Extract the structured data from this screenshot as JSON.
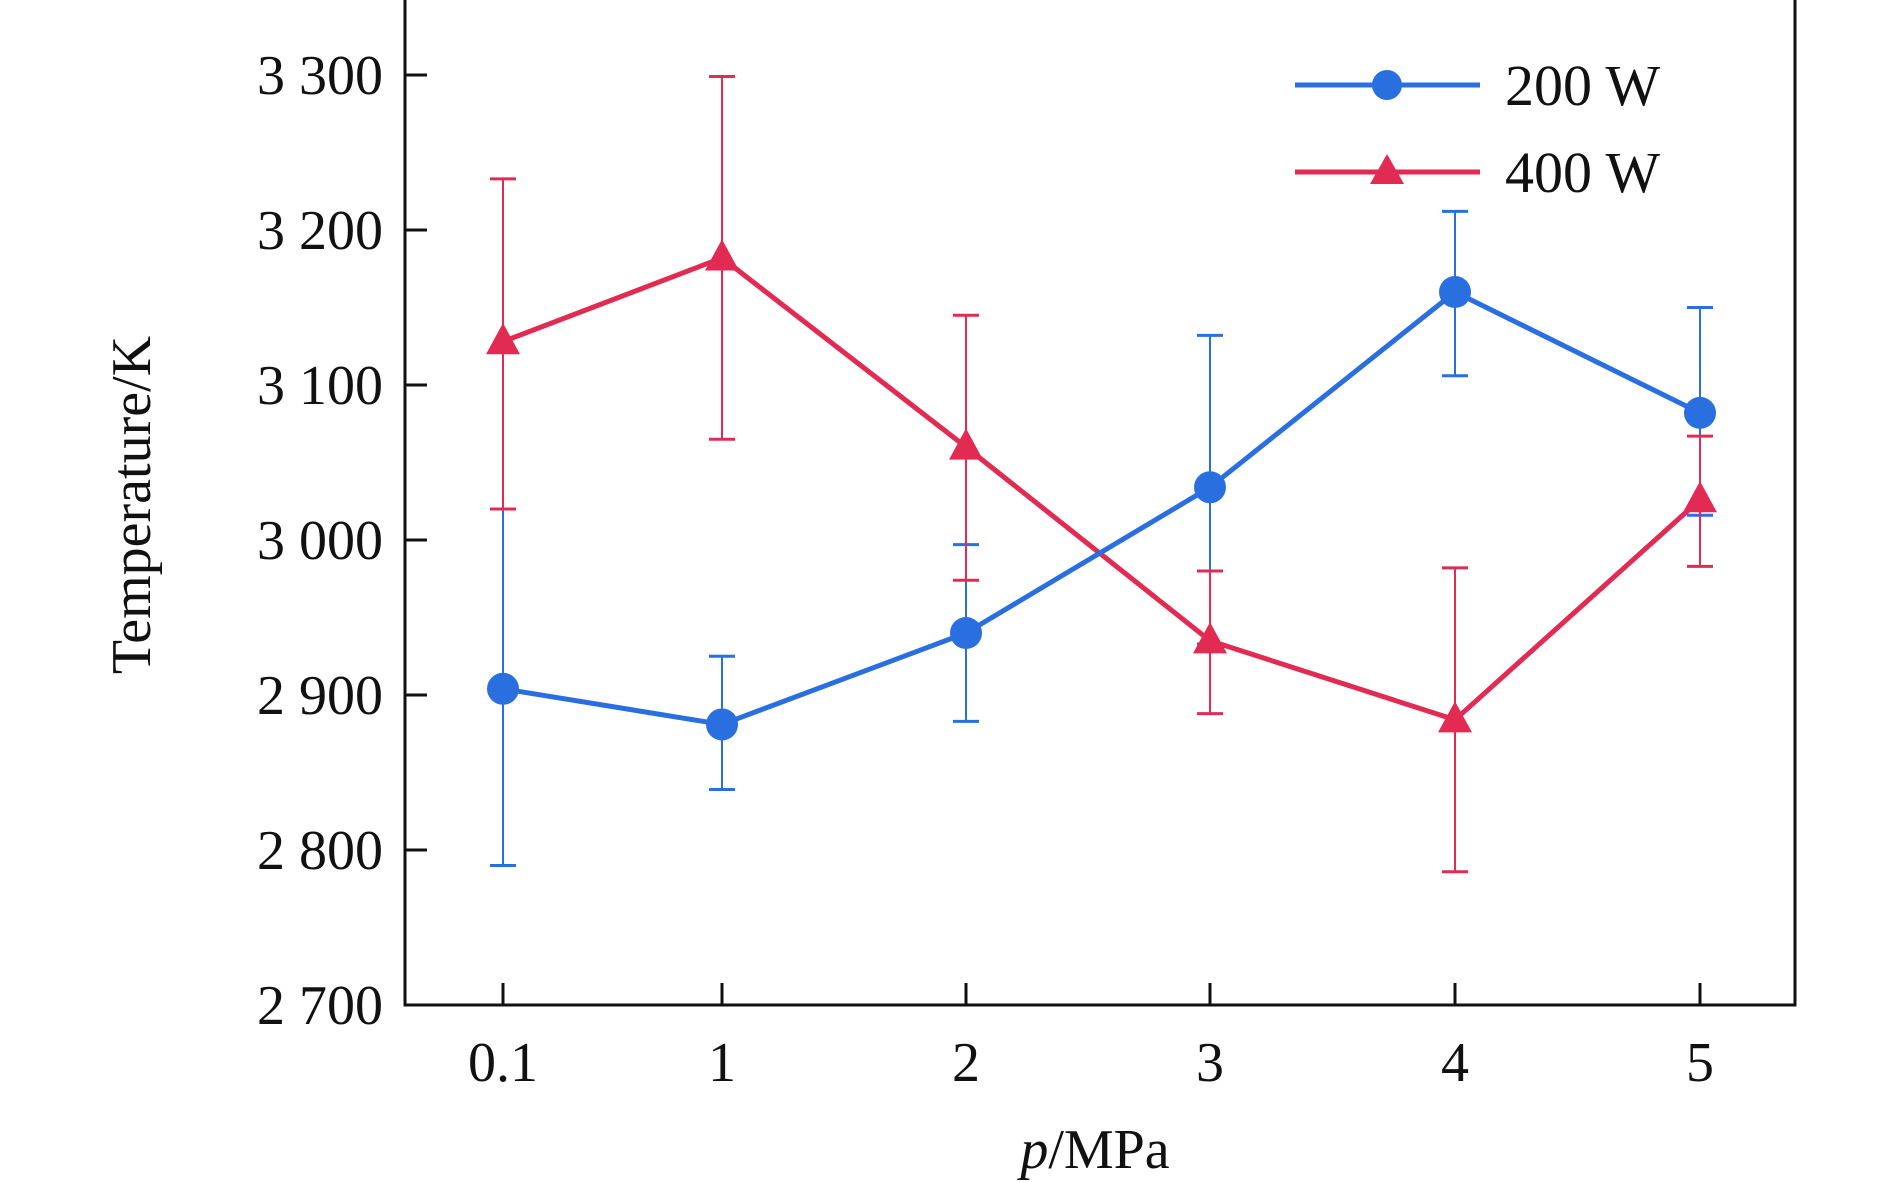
{
  "chart_data": {
    "type": "line",
    "xlabel_italic": "p",
    "xlabel_rest": "/MPa",
    "ylabel": "Temperature/K",
    "categories": [
      "0.1",
      "1",
      "2",
      "3",
      "4",
      "5"
    ],
    "y_ticks": [
      2700,
      2800,
      2900,
      3000,
      3100,
      3200,
      3300
    ],
    "y_tick_labels": [
      "2 700",
      "2 800",
      "2 900",
      "3 000",
      "3 100",
      "3 200",
      "3 300"
    ],
    "ylim": [
      2700,
      3350
    ],
    "grid": false,
    "legend_position": "top-right",
    "series": [
      {
        "name": "200 W",
        "color": "#2a6fe0",
        "marker": "circle",
        "values": [
          2904,
          2881,
          2940,
          3034,
          3160,
          3082
        ],
        "err_low": [
          2790,
          2839,
          2883,
          2933,
          3106,
          3016
        ],
        "err_high": [
          3020,
          2925,
          2997,
          3132,
          3212,
          3150
        ]
      },
      {
        "name": "400 W",
        "color": "#e22b52",
        "marker": "triangle",
        "values": [
          3128,
          3182,
          3060,
          2935,
          2884,
          3026
        ],
        "err_low": [
          3020,
          3065,
          2974,
          2888,
          2786,
          2983
        ],
        "err_high": [
          3233,
          3299,
          3145,
          2980,
          2982,
          3067
        ]
      }
    ]
  }
}
